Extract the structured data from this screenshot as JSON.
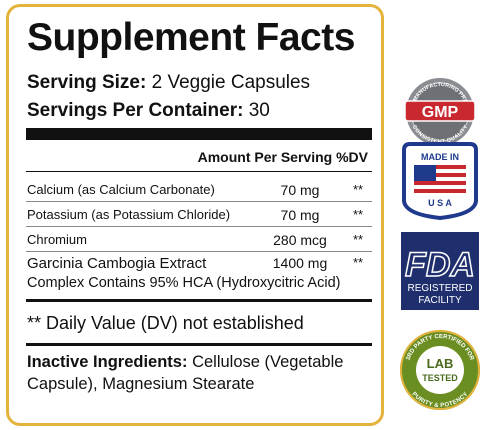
{
  "label": {
    "title": "Supplement Facts",
    "serving_size": {
      "label": "Serving Size:",
      "value": "2 Veggie Capsules"
    },
    "servings_per_container": {
      "label": "Servings Per Container:",
      "value": "30"
    },
    "column_header": {
      "amount": "Amount Per Serving",
      "dv": "%DV"
    },
    "rows": [
      {
        "name": "Calcium (as Calcium Carbonate)",
        "amount": "70 mg",
        "dv": "**"
      },
      {
        "name": "Potassium (as Potassium Chloride)",
        "amount": "70 mg",
        "dv": "**"
      },
      {
        "name": "Chromium",
        "amount": "280 mcg",
        "dv": "**"
      },
      {
        "name": "Garcinia Cambogia Extract",
        "amount": "1400 mg",
        "dv": "**",
        "detail": "Complex Contains 95% HCA (Hydroxycitric Acid)"
      }
    ],
    "footnote": "** Daily Value (DV) not established",
    "inactive": {
      "label": "Inactive Ingredients:",
      "value": "Cellulose (Vegetable Capsule), Magnesium Stearate"
    }
  },
  "badges": {
    "gmp": {
      "text": "GMP",
      "top": "GOOD MANUFACTURING PRACTICE",
      "bottom": "CONSISTENT QUALITY"
    },
    "usa": {
      "top": "MADE IN",
      "bottom": "U S A"
    },
    "fda": {
      "text": "FDA",
      "line1": "REGISTERED",
      "line2": "FACILITY"
    },
    "lab": {
      "line1": "LAB",
      "line2": "TESTED",
      "top": "3RD PARTY CERTIFIED FOR",
      "bottom": "PURITY & POTENCY"
    }
  }
}
